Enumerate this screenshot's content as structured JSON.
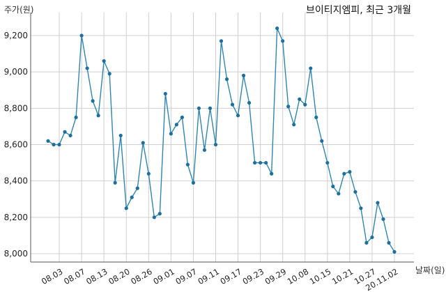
{
  "chart_data": {
    "type": "line",
    "title": "브이티지엠피, 최근 3개월",
    "xlabel": "날짜(일)",
    "ylabel": "주가(원)",
    "ylim": [
      7960,
      9320
    ],
    "yticks": [
      8000,
      8200,
      8400,
      8600,
      8800,
      9000,
      9200
    ],
    "ytick_labels": [
      "8,000",
      "8,200",
      "8,400",
      "8,600",
      "8,800",
      "9,000",
      "9,200"
    ],
    "xtick_labels": [
      "08.03",
      "08.07",
      "08.13",
      "08.20",
      "08.26",
      "09.01",
      "09.07",
      "09.11",
      "09.17",
      "09.23",
      "09.29",
      "10.08",
      "10.15",
      "10.21",
      "10.27",
      "20.11.02"
    ],
    "xtick_index": [
      2,
      6,
      10,
      14,
      18,
      22,
      26,
      30,
      34,
      38,
      42,
      46,
      50,
      54,
      58,
      62
    ],
    "grid": true,
    "series": [
      {
        "color": "#2f86ad",
        "values": [
          8620,
          8600,
          8600,
          8670,
          8650,
          8750,
          9200,
          9020,
          8840,
          8760,
          9060,
          8990,
          8390,
          8650,
          8250,
          8310,
          8360,
          8610,
          8440,
          8200,
          8220,
          8880,
          8660,
          8710,
          8750,
          8490,
          8390,
          8800,
          8570,
          8800,
          8600,
          9170,
          8960,
          8820,
          8760,
          8980,
          8830,
          8500,
          8500,
          8500,
          8440,
          9240,
          9170,
          8810,
          8710,
          8850,
          8820,
          9020,
          8750,
          8620,
          8500,
          8370,
          8330,
          8440,
          8450,
          8340,
          8250,
          8060,
          8090,
          8280,
          8190,
          8060,
          8010
        ]
      }
    ]
  }
}
